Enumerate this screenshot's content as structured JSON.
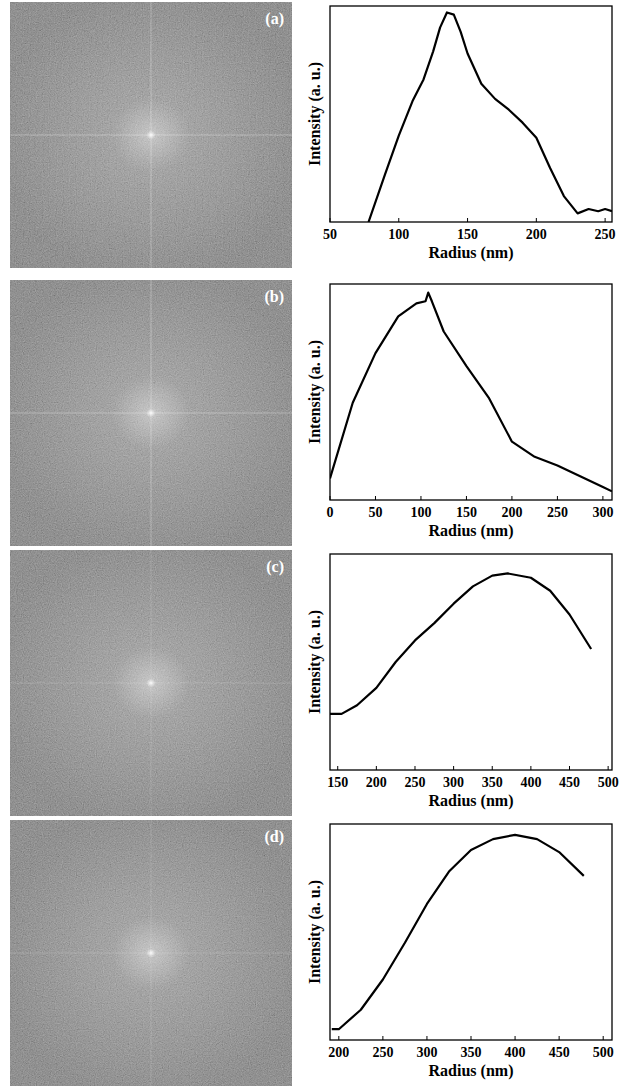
{
  "chart_data": [
    {
      "type": "line",
      "title": "(a)",
      "xlabel": "Radius (nm)",
      "ylabel": "Intensity (a. u.)",
      "x": [
        78,
        90,
        100,
        110,
        118,
        125,
        130,
        135,
        140,
        145,
        150,
        160,
        170,
        180,
        190,
        200,
        210,
        220,
        230,
        238,
        245,
        250,
        255
      ],
      "values": [
        0,
        0.22,
        0.4,
        0.56,
        0.66,
        0.79,
        0.9,
        0.97,
        0.96,
        0.88,
        0.78,
        0.64,
        0.57,
        0.52,
        0.46,
        0.39,
        0.25,
        0.12,
        0.04,
        0.06,
        0.05,
        0.06,
        0.05
      ],
      "xlim": [
        50,
        255
      ],
      "xticks": [
        50,
        100,
        150,
        200,
        250
      ],
      "ylim": [
        0,
        1
      ],
      "tick_labels": "x",
      "color": "#000000"
    },
    {
      "type": "line",
      "title": "(b)",
      "xlabel": "Radius (nm)",
      "ylabel": "Intensity (a. u.)",
      "x": [
        0,
        25,
        50,
        75,
        95,
        105,
        108,
        112,
        125,
        150,
        175,
        200,
        225,
        250,
        275,
        300,
        310
      ],
      "values": [
        0.1,
        0.45,
        0.68,
        0.85,
        0.91,
        0.92,
        0.96,
        0.92,
        0.78,
        0.62,
        0.47,
        0.27,
        0.2,
        0.16,
        0.11,
        0.06,
        0.04
      ],
      "xlim": [
        0,
        310
      ],
      "xticks": [
        0,
        50,
        100,
        150,
        200,
        250,
        300
      ],
      "ylim": [
        0,
        1
      ],
      "tick_labels": "x",
      "color": "#000000"
    },
    {
      "type": "line",
      "title": "(c)",
      "xlabel": "Radius (nm)",
      "ylabel": "Intensity (a. u.)",
      "x": [
        140,
        155,
        175,
        200,
        225,
        250,
        275,
        300,
        325,
        350,
        370,
        400,
        425,
        450,
        478
      ],
      "values": [
        0.26,
        0.26,
        0.3,
        0.38,
        0.5,
        0.6,
        0.68,
        0.77,
        0.85,
        0.9,
        0.91,
        0.89,
        0.83,
        0.72,
        0.56
      ],
      "xlim": [
        140,
        505
      ],
      "xticks": [
        150,
        200,
        250,
        300,
        350,
        400,
        450,
        500
      ],
      "ylim": [
        0,
        1
      ],
      "tick_labels": "x",
      "color": "#000000"
    },
    {
      "type": "line",
      "title": "(d)",
      "xlabel": "Radius (nm)",
      "ylabel": "Intensity (a. u.)",
      "x": [
        192,
        200,
        225,
        250,
        275,
        300,
        325,
        350,
        375,
        400,
        425,
        450,
        478
      ],
      "values": [
        0.05,
        0.05,
        0.14,
        0.28,
        0.45,
        0.63,
        0.78,
        0.88,
        0.93,
        0.95,
        0.93,
        0.87,
        0.76
      ],
      "xlim": [
        190,
        510
      ],
      "xticks": [
        200,
        250,
        300,
        350,
        400,
        450,
        500
      ],
      "ylim": [
        0,
        1
      ],
      "tick_labels": "x",
      "color": "#000000"
    }
  ]
}
